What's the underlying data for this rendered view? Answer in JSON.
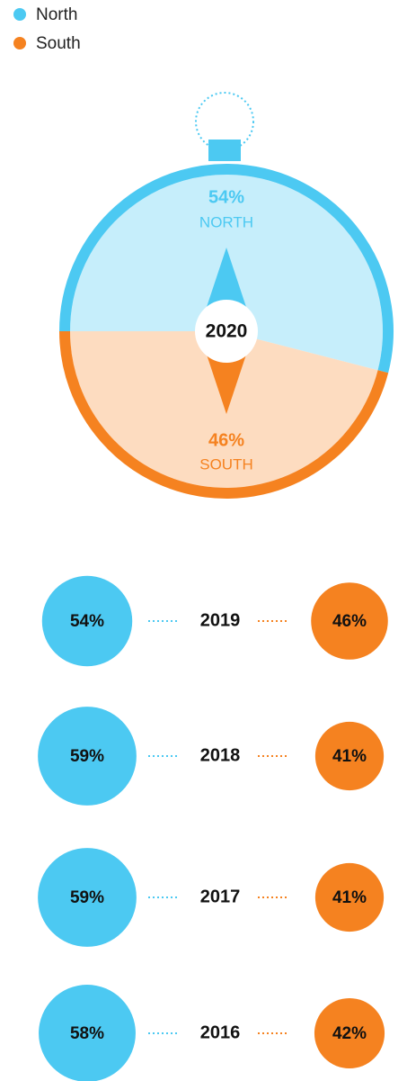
{
  "chart_data": {
    "type": "compass",
    "categories": [
      "2020",
      "2019",
      "2018",
      "2017",
      "2016"
    ],
    "series": [
      {
        "name": "North",
        "color": "#4cc9f2",
        "light": "#c6eefb",
        "values": [
          54,
          54,
          59,
          59,
          58
        ],
        "value_labels": [
          "54%",
          "54%",
          "59%",
          "59%",
          "58%"
        ]
      },
      {
        "name": "South",
        "color": "#f58220",
        "light": "#fddcc0",
        "values": [
          46,
          46,
          41,
          41,
          42
        ],
        "value_labels": [
          "46%",
          "46%",
          "41%",
          "41%",
          "42%"
        ]
      }
    ],
    "compass_labels": [
      "NORTH",
      "SOUTH"
    ]
  }
}
